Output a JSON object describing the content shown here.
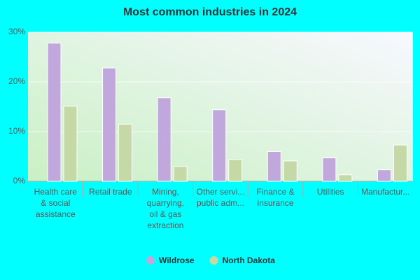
{
  "chart_data": {
    "type": "bar",
    "title": "Most common industries in 2024",
    "categories": [
      "Health care\n& social\nassistance",
      "Retail trade",
      "Mining,\nquarrying,\noil & gas\nextraction",
      "Other servi...\npublic adm...",
      "Finance &\ninsurance",
      "Utilities",
      "Manufactur..."
    ],
    "series": [
      {
        "name": "Wildrose",
        "color": "#c0a8dc",
        "values": [
          27.8,
          22.8,
          16.8,
          14.4,
          6.0,
          4.7,
          2.3
        ]
      },
      {
        "name": "North Dakota",
        "color": "#c5d9a6",
        "values": [
          15.1,
          11.5,
          3.0,
          4.4,
          4.1,
          1.3,
          7.3
        ]
      }
    ],
    "ylim": [
      0,
      30
    ],
    "yticks": [
      {
        "value": 0,
        "label": "0%"
      },
      {
        "value": 10,
        "label": "10%"
      },
      {
        "value": 20,
        "label": "20%"
      },
      {
        "value": 30,
        "label": "30%"
      }
    ],
    "grid": true,
    "legend": "bottom"
  }
}
